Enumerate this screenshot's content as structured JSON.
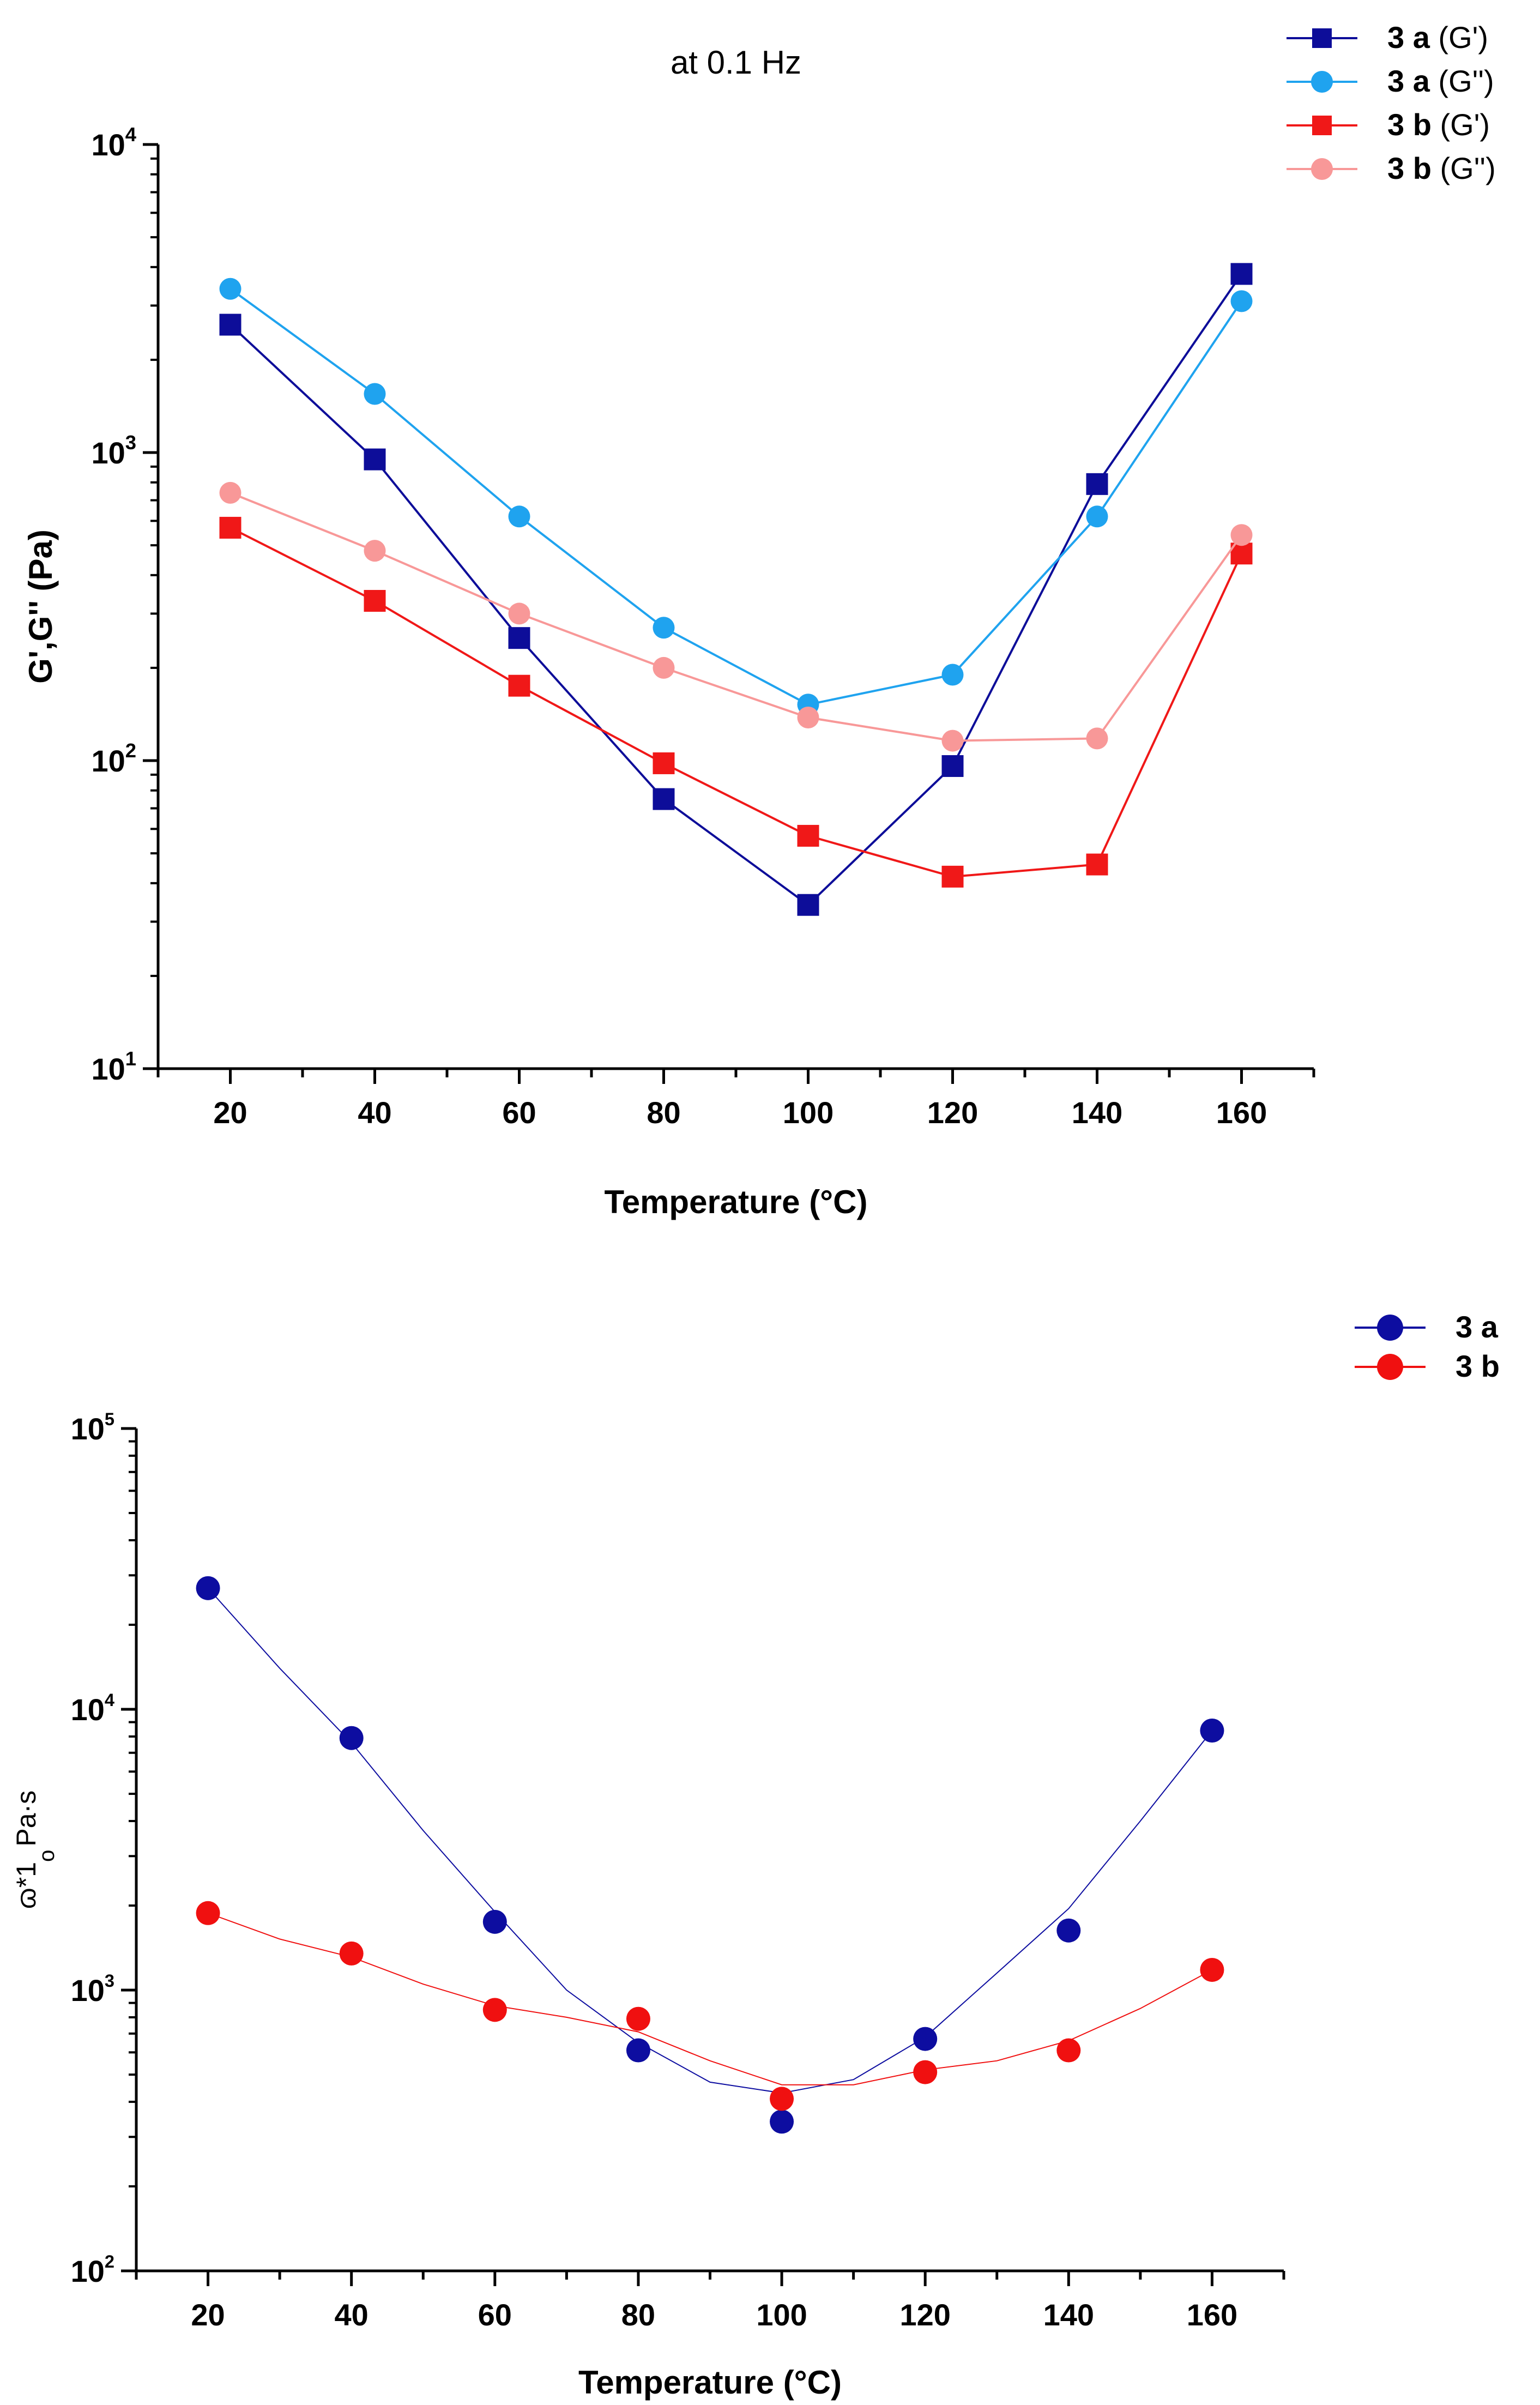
{
  "chart_data": [
    {
      "type": "line",
      "title": "at 0.1 Hz",
      "xlabel": "Temperature (°C)",
      "ylabel": "G',G'' (Pa)",
      "yscale": "log",
      "xlim": [
        10,
        170
      ],
      "ylim": [
        10,
        10000
      ],
      "x": [
        20,
        40,
        60,
        80,
        100,
        120,
        140,
        160
      ],
      "xticks": [
        "20",
        "40",
        "60",
        "80",
        "100",
        "120",
        "140",
        "160"
      ],
      "yticks": [
        {
          "value": 10,
          "base": "10",
          "exp": "1"
        },
        {
          "value": 100,
          "base": "10",
          "exp": "2"
        },
        {
          "value": 1000,
          "base": "10",
          "exp": "3"
        },
        {
          "value": 10000,
          "base": "10",
          "exp": "4"
        }
      ],
      "legend_position": "top-right",
      "series": [
        {
          "name": "3 a (G')",
          "bold": "3 a",
          "rest": " (G')",
          "marker": "square",
          "color": "#0d0d99",
          "values": [
            2600,
            950,
            250,
            75,
            34,
            96,
            790,
            3800
          ]
        },
        {
          "name": "3 a (G'')",
          "bold": "3 a",
          "rest": " (G'')",
          "marker": "circle",
          "color": "#1fa3ef",
          "values": [
            3400,
            1550,
            620,
            270,
            152,
            190,
            620,
            3100
          ]
        },
        {
          "name": "3 b (G')",
          "bold": "3 b",
          "rest": " (G')",
          "marker": "square",
          "color": "#f01818",
          "values": [
            570,
            330,
            175,
            98,
            57,
            42,
            46,
            470
          ]
        },
        {
          "name": "3 b (G'')",
          "bold": "3 b",
          "rest": " (G'')",
          "marker": "circle",
          "color": "#f89898",
          "values": [
            740,
            480,
            300,
            200,
            138,
            116,
            118,
            540
          ]
        }
      ]
    },
    {
      "type": "scatter",
      "title": "",
      "xlabel": "Temperature (°C)",
      "ylabel": "ɷ*1 Pa·s",
      "ylabel_main": "ɷ*1",
      "ylabel_unit": "Pa·s",
      "ylabel_sub": "o",
      "yscale": "log",
      "xlim": [
        10,
        170
      ],
      "ylim": [
        100,
        100000
      ],
      "x": [
        20,
        40,
        60,
        80,
        100,
        120,
        140,
        160
      ],
      "xticks": [
        "20",
        "40",
        "60",
        "80",
        "100",
        "120",
        "140",
        "160"
      ],
      "yticks": [
        {
          "value": 100,
          "base": "10",
          "exp": "2"
        },
        {
          "value": 1000,
          "base": "10",
          "exp": "3"
        },
        {
          "value": 10000,
          "base": "10",
          "exp": "4"
        },
        {
          "value": 100000,
          "base": "10",
          "exp": "5"
        }
      ],
      "legend_position": "top-right",
      "series": [
        {
          "name": "3 a",
          "marker": "circle",
          "color": "#0d0da0",
          "values": [
            27000,
            7900,
            1750,
            610,
            340,
            670,
            1630,
            8400
          ],
          "fit_x": [
            20,
            30,
            40,
            50,
            60,
            70,
            80,
            90,
            100,
            110,
            120,
            130,
            140,
            150,
            160
          ],
          "fit": [
            27000,
            14000,
            7600,
            3700,
            1900,
            1000,
            650,
            470,
            430,
            480,
            680,
            1150,
            1950,
            4000,
            8400
          ]
        },
        {
          "name": "3 b",
          "marker": "circle",
          "color": "#f01010",
          "values": [
            1880,
            1350,
            850,
            790,
            410,
            510,
            610,
            1180
          ],
          "fit_x": [
            20,
            30,
            40,
            50,
            60,
            70,
            80,
            90,
            100,
            110,
            120,
            130,
            140,
            150,
            160
          ],
          "fit": [
            1880,
            1520,
            1310,
            1050,
            880,
            800,
            710,
            560,
            460,
            460,
            520,
            560,
            660,
            860,
            1180
          ]
        }
      ]
    }
  ]
}
